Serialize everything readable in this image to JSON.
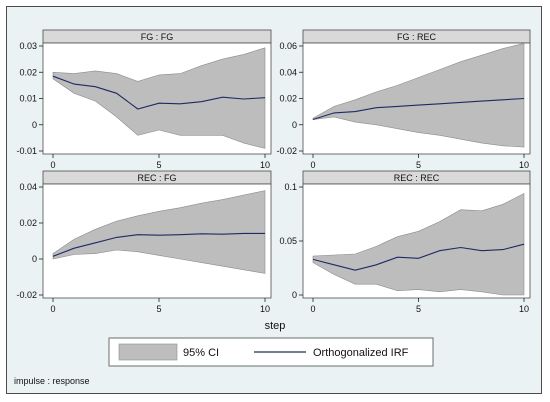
{
  "chart_data": {
    "type": "line",
    "layout": "2x2 panel grid with shared x axis and a bottom legend",
    "xlabel": "step",
    "note": "impulse : response",
    "legend": {
      "placement": "bottom",
      "entries": [
        "95% CI",
        "Orthogonalized IRF"
      ]
    },
    "colors": {
      "ci_fill": "#bdbdbd",
      "irf_line": "#1f2a63",
      "strip": "#d9d9d9",
      "panel_bg": "#ffffff",
      "outer_bg": "#eaf2f3"
    },
    "x": [
      0,
      1,
      2,
      3,
      4,
      5,
      6,
      7,
      8,
      9,
      10
    ],
    "xticks": [
      0,
      5,
      10
    ],
    "panels": [
      {
        "title": "FG : FG",
        "ylim": [
          -0.01,
          0.03
        ],
        "yticks": [
          -0.01,
          0,
          0.01,
          0.02,
          0.03
        ],
        "ytick_labels": [
          "-0.01",
          "0",
          "0.01",
          "0.02",
          "0.03"
        ],
        "irf": [
          0.0185,
          0.0155,
          0.0145,
          0.012,
          0.006,
          0.0082,
          0.008,
          0.0088,
          0.0105,
          0.0098,
          0.0103
        ],
        "ci_lower": [
          0.0175,
          0.012,
          0.009,
          0.003,
          -0.004,
          -0.002,
          -0.004,
          -0.004,
          -0.004,
          -0.007,
          -0.009
        ],
        "ci_upper": [
          0.02,
          0.0195,
          0.0205,
          0.0195,
          0.0165,
          0.019,
          0.0195,
          0.0225,
          0.025,
          0.0268,
          0.0293
        ]
      },
      {
        "title": "FG : REC",
        "ylim": [
          -0.02,
          0.06
        ],
        "yticks": [
          -0.02,
          0,
          0.02,
          0.04,
          0.06
        ],
        "ytick_labels": [
          "-0.02",
          "0",
          "0.02",
          "0.04",
          "0.06"
        ],
        "irf": [
          0.004,
          0.009,
          0.01,
          0.013,
          0.014,
          0.015,
          0.016,
          0.017,
          0.018,
          0.019,
          0.02
        ],
        "ci_lower": [
          0.004,
          0.006,
          0.002,
          0.0,
          -0.003,
          -0.006,
          -0.008,
          -0.011,
          -0.014,
          -0.016,
          -0.017
        ],
        "ci_upper": [
          0.005,
          0.014,
          0.019,
          0.025,
          0.03,
          0.036,
          0.042,
          0.048,
          0.053,
          0.058,
          0.062
        ]
      },
      {
        "title": "REC : FG",
        "ylim": [
          -0.02,
          0.04
        ],
        "yticks": [
          -0.02,
          0,
          0.02,
          0.04
        ],
        "ytick_labels": [
          "-0.02",
          "0",
          "0.02",
          "0.04"
        ],
        "irf": [
          0.0015,
          0.006,
          0.009,
          0.012,
          0.0135,
          0.0132,
          0.0135,
          0.014,
          0.0138,
          0.0142,
          0.0142
        ],
        "ci_lower": [
          0.0,
          0.0025,
          0.003,
          0.005,
          0.004,
          0.002,
          0.0,
          -0.002,
          -0.004,
          -0.006,
          -0.008
        ],
        "ci_upper": [
          0.003,
          0.011,
          0.0165,
          0.021,
          0.024,
          0.0265,
          0.0285,
          0.031,
          0.033,
          0.0355,
          0.038
        ]
      },
      {
        "title": "REC : REC",
        "ylim": [
          0,
          0.1
        ],
        "yticks": [
          0,
          0.05,
          0.1
        ],
        "ytick_labels": [
          "0",
          "0.05",
          "0.1"
        ],
        "irf": [
          0.033,
          0.028,
          0.023,
          0.028,
          0.035,
          0.034,
          0.041,
          0.044,
          0.041,
          0.042,
          0.047
        ],
        "ci_lower": [
          0.03,
          0.019,
          0.01,
          0.01,
          0.004,
          0.005,
          0.003,
          0.005,
          0.003,
          0.0,
          0.0
        ],
        "ci_upper": [
          0.036,
          0.037,
          0.038,
          0.045,
          0.054,
          0.059,
          0.068,
          0.079,
          0.078,
          0.084,
          0.094
        ]
      }
    ]
  }
}
